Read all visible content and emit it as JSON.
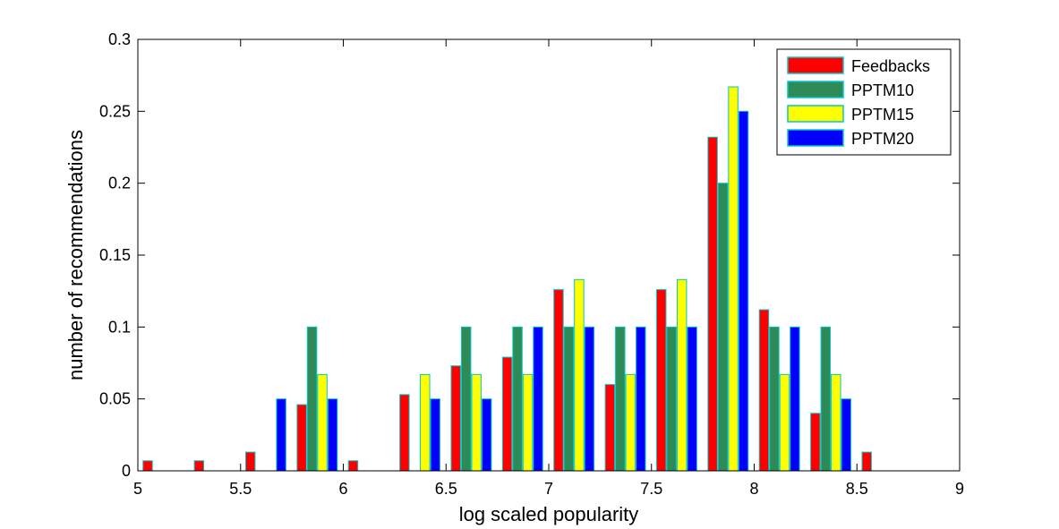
{
  "chart_data": {
    "type": "bar",
    "xlabel": "log scaled popularity",
    "ylabel": "number of recommendations",
    "xlim": [
      5,
      9
    ],
    "ylim": [
      0,
      0.3
    ],
    "xticks": [
      "5",
      "5.5",
      "6",
      "6.5",
      "7",
      "7.5",
      "8",
      "8.5",
      "9"
    ],
    "yticks": [
      "0",
      "0.05",
      "0.1",
      "0.15",
      "0.2",
      "0.25",
      "0.3"
    ],
    "grid": false,
    "legend_position": "top-right",
    "bin_centers": [
      5.125,
      5.375,
      5.625,
      5.875,
      6.125,
      6.375,
      6.625,
      6.875,
      7.125,
      7.375,
      7.625,
      7.875,
      8.125,
      8.375,
      8.625,
      8.875
    ],
    "series": [
      {
        "name": "Feedbacks",
        "color": "#ff0000",
        "values": [
          0.007,
          0.007,
          0.013,
          0.046,
          0.007,
          0.053,
          0.073,
          0.079,
          0.126,
          0.06,
          0.126,
          0.232,
          0.112,
          0.04,
          0.013,
          0.0
        ]
      },
      {
        "name": "PPTM10",
        "color": "#2e8b57",
        "edge": "#00c8c8",
        "values": [
          0.0,
          0.0,
          0.0,
          0.1,
          0.0,
          0.0,
          0.1,
          0.1,
          0.1,
          0.1,
          0.1,
          0.2,
          0.1,
          0.1,
          0.0,
          0.0
        ]
      },
      {
        "name": "PPTM15",
        "color": "#ffff00",
        "values": [
          0.0,
          0.0,
          0.0,
          0.067,
          0.0,
          0.067,
          0.067,
          0.067,
          0.133,
          0.067,
          0.133,
          0.267,
          0.067,
          0.067,
          0.0,
          0.0
        ]
      },
      {
        "name": "PPTM20",
        "color": "#0000ff",
        "values": [
          0.0,
          0.0,
          0.05,
          0.05,
          0.0,
          0.05,
          0.05,
          0.1,
          0.1,
          0.1,
          0.1,
          0.25,
          0.1,
          0.05,
          0.0,
          0.0
        ]
      }
    ]
  }
}
